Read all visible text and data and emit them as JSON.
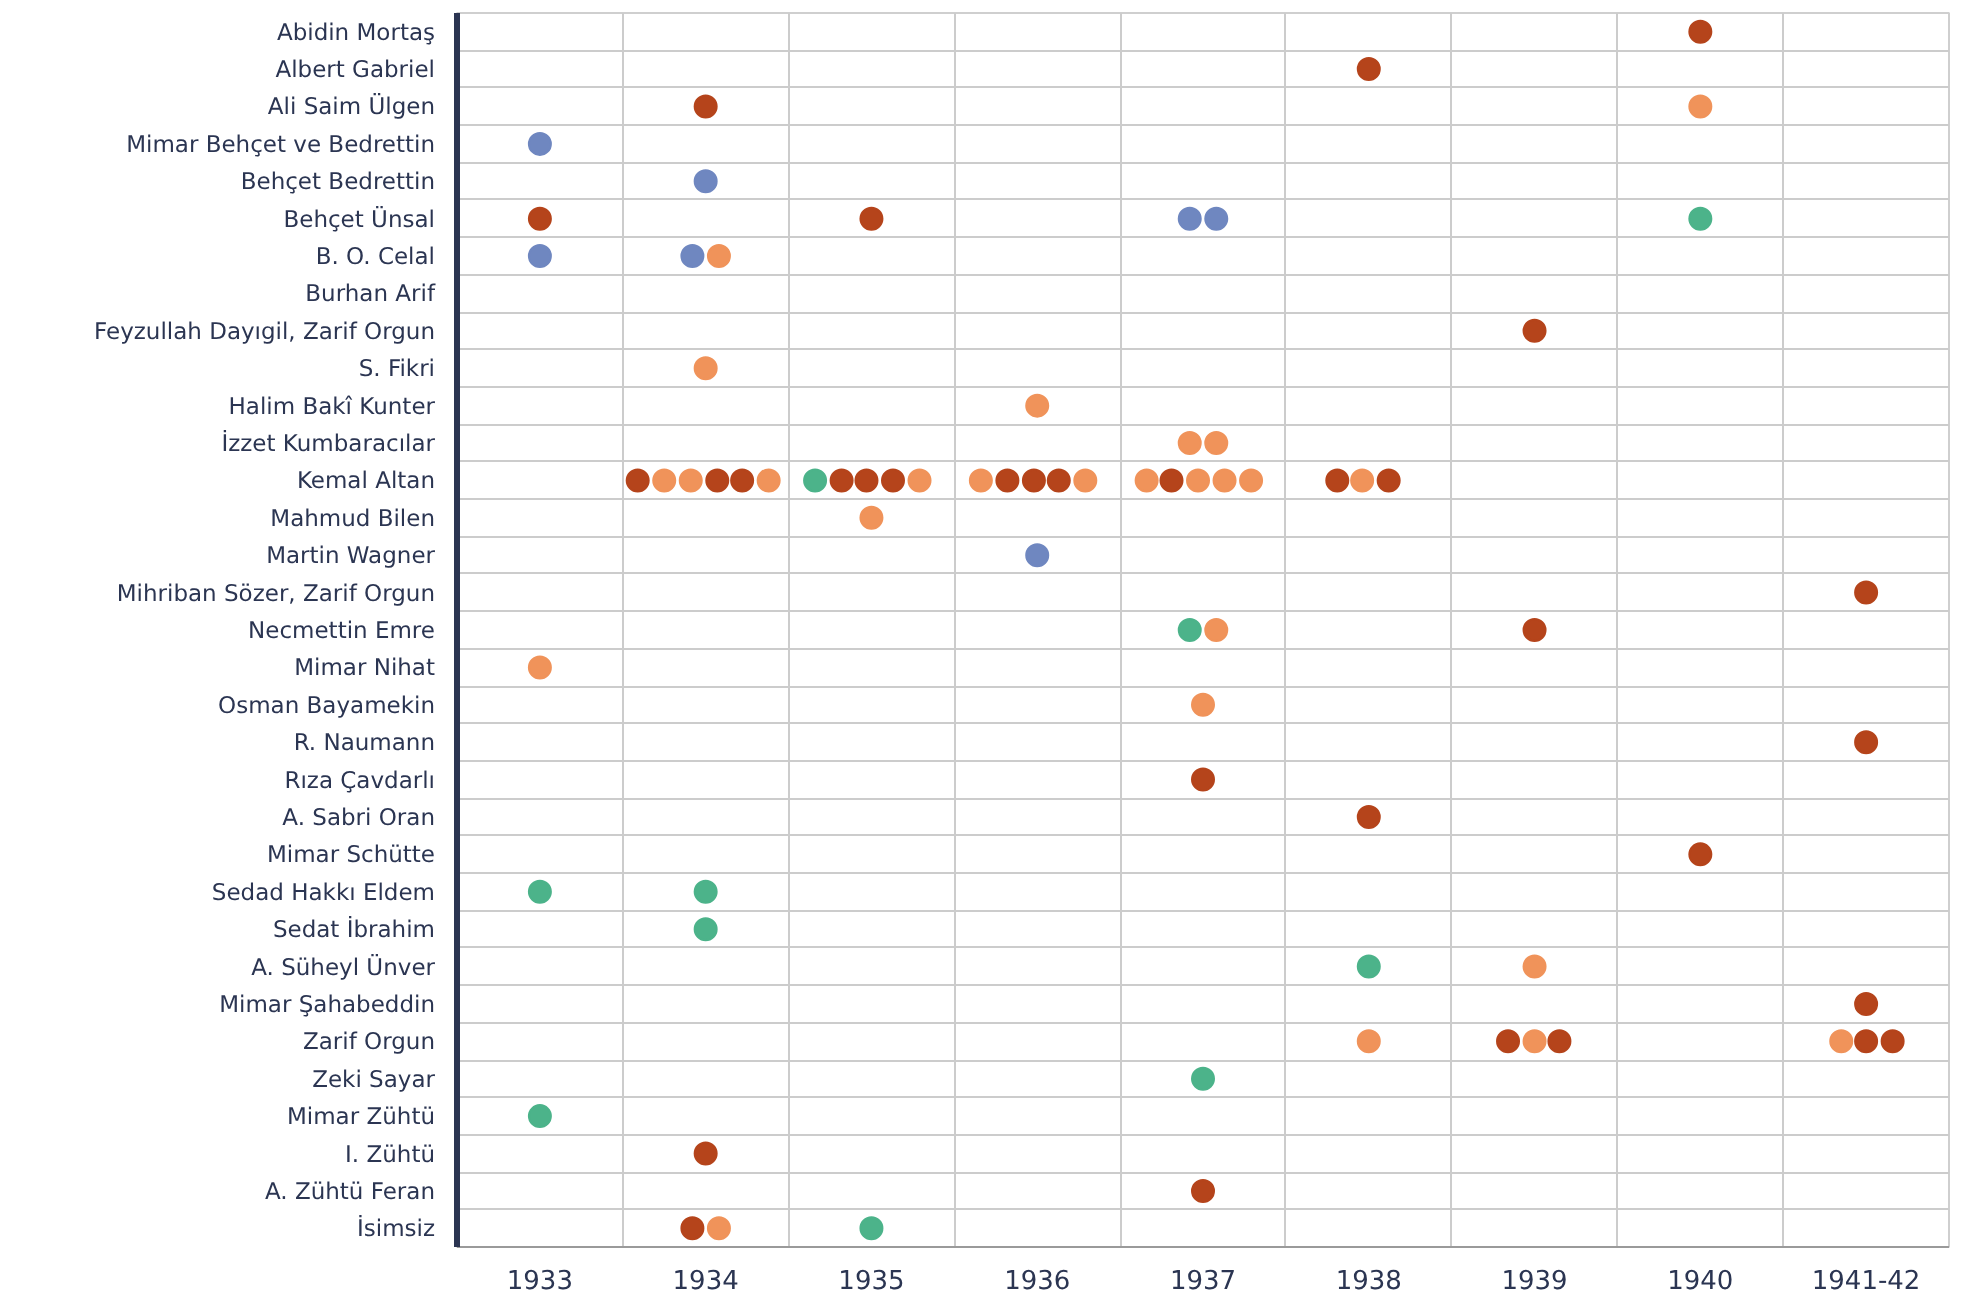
{
  "chart_data": {
    "type": "scatter",
    "orientation": "horizontal",
    "grid": true,
    "marker": "circle",
    "categories": [
      "Abidin Mortaş",
      "Albert Gabriel",
      "Ali Saim Ülgen",
      "Mimar Behçet ve Bedrettin",
      "Behçet Bedrettin",
      "Behçet Ünsal",
      "B. O. Celal",
      "Burhan Arif",
      "Feyzullah Dayıgil, Zarif Orgun",
      "S. Fikri",
      "Halim Bakî Kunter",
      "İzzet Kumbaracılar",
      "Kemal Altan",
      "Mahmud Bilen",
      "Martin Wagner",
      "Mihriban Sözer, Zarif Orgun",
      "Necmettin Emre",
      "Mimar Nihat",
      "Osman Bayamekin",
      "R. Naumann",
      "Rıza Çavdarlı",
      "A. Sabri Oran",
      "Mimar Schütte",
      "Sedad Hakkı Eldem",
      "Sedat İbrahim",
      "A. Süheyl Ünver",
      "Mimar Şahabeddin",
      "Zarif Orgun",
      "Zeki Sayar",
      "Mimar Zühtü",
      "I. Zühtü",
      "A. Zühtü Feran",
      "İsimsiz"
    ],
    "xlim": [
      1932.5,
      1941.5
    ],
    "xticks": [
      1933,
      1934,
      1935,
      1936,
      1937,
      1938,
      1939,
      {
        "value": 1940,
        "label": "1940"
      },
      {
        "value": 1941,
        "label": "1941-42"
      }
    ],
    "series": [
      {
        "color": "#b5441b",
        "values": [
          1940,
          1938,
          1934,
          null,
          null,
          1933,
          null,
          null,
          1939,
          null,
          null,
          null,
          1933.59,
          null,
          null,
          1941,
          1939,
          null,
          null,
          1941,
          1937,
          1938,
          1940,
          null,
          null,
          null,
          1941,
          1938.84,
          null,
          null,
          1934,
          1937,
          1933.92
        ]
      },
      {
        "color": "#b5441b",
        "values": [
          null,
          null,
          null,
          null,
          null,
          1935,
          null,
          null,
          null,
          null,
          null,
          null,
          1934.07,
          null,
          null,
          null,
          null,
          null,
          null,
          null,
          null,
          null,
          null,
          null,
          null,
          null,
          null,
          1939.15,
          null,
          null,
          null,
          null,
          null
        ]
      },
      {
        "color": "#b5441b",
        "values": [
          null,
          null,
          null,
          null,
          null,
          null,
          null,
          null,
          null,
          null,
          null,
          null,
          1934.22,
          null,
          null,
          null,
          null,
          null,
          null,
          null,
          null,
          null,
          null,
          null,
          null,
          null,
          null,
          1941,
          null,
          null,
          null,
          null,
          null
        ]
      },
      {
        "color": "#b5441b",
        "values": [
          null,
          null,
          null,
          null,
          null,
          null,
          null,
          null,
          null,
          null,
          null,
          null,
          1934.82,
          null,
          null,
          null,
          null,
          null,
          null,
          null,
          null,
          null,
          null,
          null,
          null,
          null,
          null,
          1941.16,
          null,
          null,
          null,
          null,
          null
        ]
      },
      {
        "color": "#b5441b",
        "values": [
          null,
          null,
          null,
          null,
          null,
          null,
          null,
          null,
          null,
          null,
          null,
          null,
          1934.97,
          null,
          null,
          null,
          null,
          null,
          null,
          null,
          null,
          null,
          null,
          null,
          null,
          null,
          null,
          null,
          null,
          null,
          null,
          null,
          null
        ]
      },
      {
        "color": "#b5441b",
        "values": [
          null,
          null,
          null,
          null,
          null,
          null,
          null,
          null,
          null,
          null,
          null,
          null,
          1935.13,
          null,
          null,
          null,
          null,
          null,
          null,
          null,
          null,
          null,
          null,
          null,
          null,
          null,
          null,
          null,
          null,
          null,
          null,
          null,
          null
        ]
      },
      {
        "color": "#b5441b",
        "values": [
          null,
          null,
          null,
          null,
          null,
          null,
          null,
          null,
          null,
          null,
          null,
          null,
          1935.82,
          null,
          null,
          null,
          null,
          null,
          null,
          null,
          null,
          null,
          null,
          null,
          null,
          null,
          null,
          null,
          null,
          null,
          null,
          null,
          null
        ]
      },
      {
        "color": "#b5441b",
        "values": [
          null,
          null,
          null,
          null,
          null,
          null,
          null,
          null,
          null,
          null,
          null,
          null,
          1935.98,
          null,
          null,
          null,
          null,
          null,
          null,
          null,
          null,
          null,
          null,
          null,
          null,
          null,
          null,
          null,
          null,
          null,
          null,
          null,
          null
        ]
      },
      {
        "color": "#b5441b",
        "values": [
          null,
          null,
          null,
          null,
          null,
          null,
          null,
          null,
          null,
          null,
          null,
          null,
          1936.13,
          null,
          null,
          null,
          null,
          null,
          null,
          null,
          null,
          null,
          null,
          null,
          null,
          null,
          null,
          null,
          null,
          null,
          null,
          null,
          null
        ]
      },
      {
        "color": "#b5441b",
        "values": [
          null,
          null,
          null,
          null,
          null,
          null,
          null,
          null,
          null,
          null,
          null,
          null,
          1936.81,
          null,
          null,
          null,
          null,
          null,
          null,
          null,
          null,
          null,
          null,
          null,
          null,
          null,
          null,
          null,
          null,
          null,
          null,
          null,
          null
        ]
      },
      {
        "color": "#b5441b",
        "values": [
          null,
          null,
          null,
          null,
          null,
          null,
          null,
          null,
          null,
          null,
          null,
          null,
          1937.81,
          null,
          null,
          null,
          null,
          null,
          null,
          null,
          null,
          null,
          null,
          null,
          null,
          null,
          null,
          null,
          null,
          null,
          null,
          null,
          null
        ]
      },
      {
        "color": "#b5441b",
        "values": [
          null,
          null,
          null,
          null,
          null,
          null,
          null,
          null,
          null,
          null,
          null,
          null,
          1938.12,
          null,
          null,
          null,
          null,
          null,
          null,
          null,
          null,
          null,
          null,
          null,
          null,
          null,
          null,
          null,
          null,
          null,
          null,
          null,
          null
        ]
      },
      {
        "color": "#f0935a",
        "values": [
          null,
          null,
          1940,
          null,
          null,
          null,
          1934.08,
          null,
          null,
          1934,
          1936,
          1936.92,
          1933.75,
          1935,
          null,
          null,
          1937.08,
          1933,
          1937,
          null,
          null,
          null,
          null,
          null,
          null,
          1939,
          null,
          1938,
          null,
          null,
          null,
          null,
          1934.08
        ]
      },
      {
        "color": "#f0935a",
        "values": [
          null,
          null,
          null,
          null,
          null,
          null,
          null,
          null,
          null,
          null,
          null,
          1937.08,
          1933.91,
          null,
          null,
          null,
          null,
          null,
          null,
          null,
          null,
          null,
          null,
          null,
          null,
          null,
          null,
          1939,
          null,
          null,
          null,
          null,
          null
        ]
      },
      {
        "color": "#f0935a",
        "values": [
          null,
          null,
          null,
          null,
          null,
          null,
          null,
          null,
          null,
          null,
          null,
          null,
          1934.38,
          null,
          null,
          null,
          null,
          null,
          null,
          null,
          null,
          null,
          null,
          null,
          null,
          null,
          null,
          1940.85,
          null,
          null,
          null,
          null,
          null
        ]
      },
      {
        "color": "#f0935a",
        "values": [
          null,
          null,
          null,
          null,
          null,
          null,
          null,
          null,
          null,
          null,
          null,
          null,
          1935.29,
          null,
          null,
          null,
          null,
          null,
          null,
          null,
          null,
          null,
          null,
          null,
          null,
          null,
          null,
          null,
          null,
          null,
          null,
          null,
          null
        ]
      },
      {
        "color": "#f0935a",
        "values": [
          null,
          null,
          null,
          null,
          null,
          null,
          null,
          null,
          null,
          null,
          null,
          null,
          1935.66,
          null,
          null,
          null,
          null,
          null,
          null,
          null,
          null,
          null,
          null,
          null,
          null,
          null,
          null,
          null,
          null,
          null,
          null,
          null,
          null
        ]
      },
      {
        "color": "#f0935a",
        "values": [
          null,
          null,
          null,
          null,
          null,
          null,
          null,
          null,
          null,
          null,
          null,
          null,
          1936.29,
          null,
          null,
          null,
          null,
          null,
          null,
          null,
          null,
          null,
          null,
          null,
          null,
          null,
          null,
          null,
          null,
          null,
          null,
          null,
          null
        ]
      },
      {
        "color": "#f0935a",
        "values": [
          null,
          null,
          null,
          null,
          null,
          null,
          null,
          null,
          null,
          null,
          null,
          null,
          1936.66,
          null,
          null,
          null,
          null,
          null,
          null,
          null,
          null,
          null,
          null,
          null,
          null,
          null,
          null,
          null,
          null,
          null,
          null,
          null,
          null
        ]
      },
      {
        "color": "#f0935a",
        "values": [
          null,
          null,
          null,
          null,
          null,
          null,
          null,
          null,
          null,
          null,
          null,
          null,
          1936.97,
          null,
          null,
          null,
          null,
          null,
          null,
          null,
          null,
          null,
          null,
          null,
          null,
          null,
          null,
          null,
          null,
          null,
          null,
          null,
          null
        ]
      },
      {
        "color": "#f0935a",
        "values": [
          null,
          null,
          null,
          null,
          null,
          null,
          null,
          null,
          null,
          null,
          null,
          null,
          1937.13,
          null,
          null,
          null,
          null,
          null,
          null,
          null,
          null,
          null,
          null,
          null,
          null,
          null,
          null,
          null,
          null,
          null,
          null,
          null,
          null
        ]
      },
      {
        "color": "#f0935a",
        "values": [
          null,
          null,
          null,
          null,
          null,
          null,
          null,
          null,
          null,
          null,
          null,
          null,
          1937.29,
          null,
          null,
          null,
          null,
          null,
          null,
          null,
          null,
          null,
          null,
          null,
          null,
          null,
          null,
          null,
          null,
          null,
          null,
          null,
          null
        ]
      },
      {
        "color": "#f0935a",
        "values": [
          null,
          null,
          null,
          null,
          null,
          null,
          null,
          null,
          null,
          null,
          null,
          null,
          1937.96,
          null,
          null,
          null,
          null,
          null,
          null,
          null,
          null,
          null,
          null,
          null,
          null,
          null,
          null,
          null,
          null,
          null,
          null,
          null,
          null
        ]
      },
      {
        "color": "#6f87c0",
        "values": [
          null,
          null,
          null,
          1933,
          1934,
          1936.92,
          1933,
          null,
          null,
          null,
          null,
          null,
          null,
          null,
          1936,
          null,
          null,
          null,
          null,
          null,
          null,
          null,
          null,
          null,
          null,
          null,
          null,
          null,
          null,
          null,
          null,
          null,
          null
        ]
      },
      {
        "color": "#6f87c0",
        "values": [
          null,
          null,
          null,
          null,
          null,
          1937.08,
          1933.92,
          null,
          null,
          null,
          null,
          null,
          null,
          null,
          null,
          null,
          null,
          null,
          null,
          null,
          null,
          null,
          null,
          null,
          null,
          null,
          null,
          null,
          null,
          null,
          null,
          null,
          null
        ]
      },
      {
        "color": "#4cb38a",
        "values": [
          null,
          null,
          null,
          null,
          null,
          1940,
          null,
          null,
          null,
          null,
          null,
          null,
          1934.66,
          null,
          null,
          null,
          1936.92,
          null,
          null,
          null,
          null,
          null,
          null,
          1933,
          1934,
          1938,
          null,
          null,
          1937,
          1933,
          null,
          null,
          1935
        ]
      },
      {
        "color": "#4cb38a",
        "values": [
          null,
          null,
          null,
          null,
          null,
          null,
          null,
          null,
          null,
          null,
          null,
          null,
          null,
          null,
          null,
          null,
          null,
          null,
          null,
          null,
          null,
          null,
          null,
          1934,
          null,
          null,
          null,
          null,
          null,
          null,
          null,
          null,
          null
        ]
      }
    ]
  }
}
